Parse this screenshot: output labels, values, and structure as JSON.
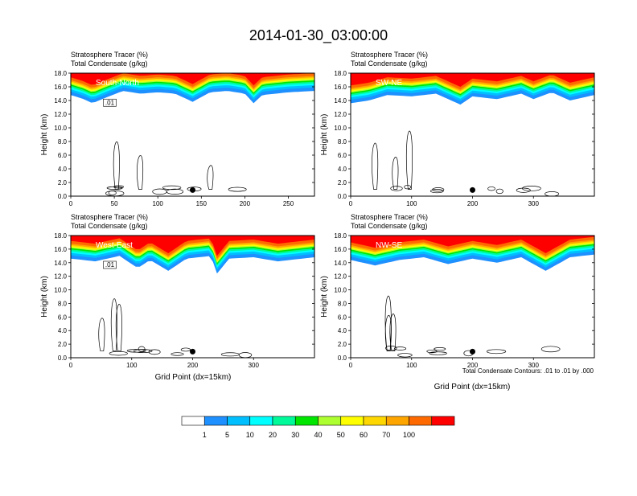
{
  "title": "2014-01-30_03:00:00",
  "panel_header_line1": "Stratosphere Tracer   (%)",
  "panel_header_line2": "Total Condensate   (g/kg)",
  "ylabel": "Height (km)",
  "xlabel": "Grid Point (dx=15km)",
  "contour_note": "Total Condensate Contours: .01 to .01 by .000",
  "colorbar": {
    "levels": [
      "1",
      "5",
      "10",
      "20",
      "30",
      "40",
      "50",
      "60",
      "70",
      "100"
    ],
    "colors": [
      "#ffffff",
      "#1e90ff",
      "#00bfff",
      "#00ffff",
      "#00fa9a",
      "#00e600",
      "#adff2f",
      "#ffff00",
      "#ffd700",
      "#ffa500",
      "#ff6a00",
      "#ff0000"
    ]
  },
  "chart_data": [
    {
      "type": "heatmap",
      "name": "South-North",
      "xlim": [
        0,
        280
      ],
      "ylim": [
        0,
        18
      ],
      "xticks": [
        0,
        50,
        100,
        150,
        200,
        250
      ],
      "yticks": [
        "0.0",
        "2.0",
        "4.0",
        "6.0",
        "8.0",
        "10.0",
        "12.0",
        "14.0",
        "16.0",
        "18.0"
      ],
      "marker_x": 140,
      "tracer_bottom_km": [
        [
          0,
          14.8
        ],
        [
          15,
          14.2
        ],
        [
          25,
          13.6
        ],
        [
          40,
          14.4
        ],
        [
          60,
          15.4
        ],
        [
          80,
          15.0
        ],
        [
          100,
          15.2
        ],
        [
          120,
          15.0
        ],
        [
          140,
          13.8
        ],
        [
          160,
          15.2
        ],
        [
          180,
          15.4
        ],
        [
          200,
          15.0
        ],
        [
          210,
          13.6
        ],
        [
          220,
          14.8
        ],
        [
          250,
          15.2
        ],
        [
          280,
          15.4
        ]
      ],
      "contour_label": ".01"
    },
    {
      "type": "heatmap",
      "name": "SW-NE",
      "xlim": [
        0,
        400
      ],
      "ylim": [
        0,
        18
      ],
      "xticks": [
        0,
        100,
        200,
        300
      ],
      "yticks": [
        "0.0",
        "2.0",
        "4.0",
        "6.0",
        "8.0",
        "10.0",
        "12.0",
        "14.0",
        "16.0",
        "18.0"
      ],
      "marker_x": 200,
      "tracer_bottom_km": [
        [
          0,
          13.6
        ],
        [
          30,
          14.0
        ],
        [
          60,
          14.8
        ],
        [
          100,
          14.6
        ],
        [
          140,
          15.0
        ],
        [
          180,
          13.4
        ],
        [
          200,
          14.6
        ],
        [
          240,
          14.2
        ],
        [
          280,
          15.0
        ],
        [
          300,
          14.2
        ],
        [
          330,
          15.2
        ],
        [
          360,
          14.0
        ],
        [
          400,
          14.8
        ]
      ],
      "contour_label": ""
    },
    {
      "type": "heatmap",
      "name": "West-East",
      "xlim": [
        0,
        400
      ],
      "ylim": [
        0,
        18
      ],
      "xticks": [
        0,
        100,
        200,
        300
      ],
      "yticks": [
        "0.0",
        "2.0",
        "4.0",
        "6.0",
        "8.0",
        "10.0",
        "12.0",
        "14.0",
        "16.0",
        "18.0"
      ],
      "marker_x": 200,
      "tracer_bottom_km": [
        [
          0,
          14.6
        ],
        [
          40,
          14.2
        ],
        [
          80,
          15.0
        ],
        [
          110,
          13.2
        ],
        [
          130,
          14.4
        ],
        [
          160,
          12.8
        ],
        [
          190,
          14.6
        ],
        [
          230,
          15.0
        ],
        [
          240,
          12.4
        ],
        [
          260,
          14.6
        ],
        [
          300,
          14.8
        ],
        [
          340,
          14.2
        ],
        [
          400,
          14.8
        ]
      ],
      "contour_label": ".01"
    },
    {
      "type": "heatmap",
      "name": "NW-SE",
      "xlim": [
        0,
        400
      ],
      "ylim": [
        0,
        18
      ],
      "xticks": [
        0,
        100,
        200,
        300
      ],
      "yticks": [
        "0.0",
        "2.0",
        "4.0",
        "6.0",
        "8.0",
        "10.0",
        "12.0",
        "14.0",
        "16.0",
        "18.0"
      ],
      "marker_x": 200,
      "tracer_bottom_km": [
        [
          0,
          14.4
        ],
        [
          40,
          13.6
        ],
        [
          80,
          14.4
        ],
        [
          120,
          14.8
        ],
        [
          160,
          13.8
        ],
        [
          200,
          14.6
        ],
        [
          240,
          14.0
        ],
        [
          280,
          14.8
        ],
        [
          320,
          12.8
        ],
        [
          360,
          14.8
        ],
        [
          400,
          15.2
        ]
      ],
      "contour_label": ""
    }
  ]
}
